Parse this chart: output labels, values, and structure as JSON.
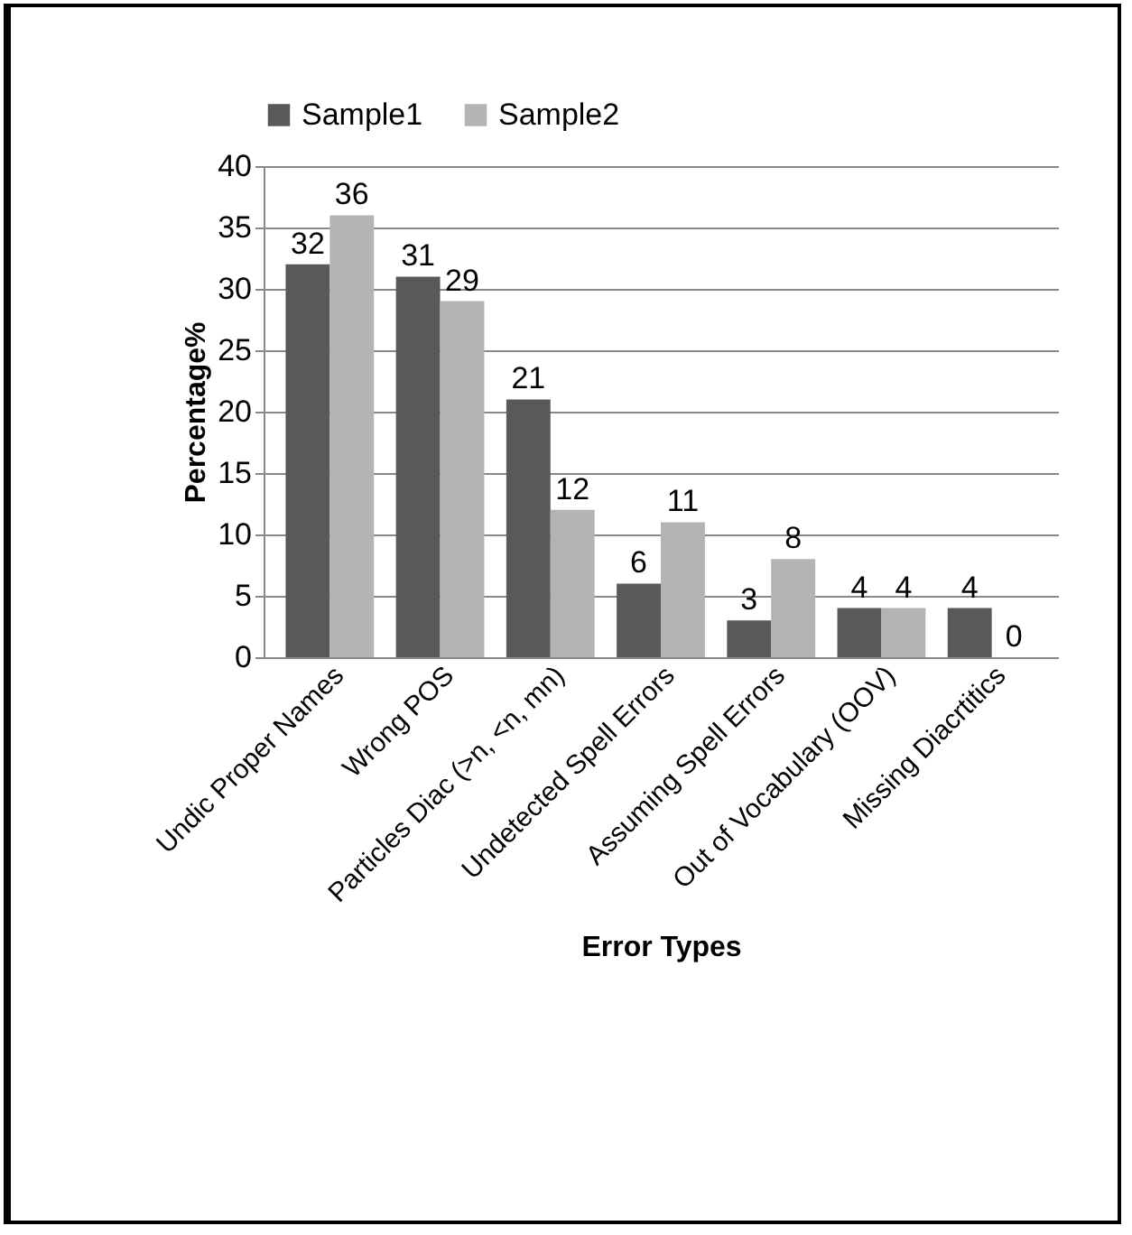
{
  "chart_data": {
    "type": "bar",
    "xlabel": "Error Types",
    "ylabel": "Percentage%",
    "categories": [
      "Undic Proper Names",
      "Wrong POS",
      "Particles Diac (>n, <n, mn)",
      "Undetected Spell Errors",
      "Assuming Spell Errors",
      "Out of Vocabulary (OOV)",
      "Missing Diacrtitics"
    ],
    "series": [
      {
        "name": "Sample1",
        "color": "#595959",
        "values": [
          32,
          31,
          21,
          6,
          3,
          4,
          4
        ]
      },
      {
        "name": "Sample2",
        "color": "#b3b3b3",
        "values": [
          36,
          29,
          12,
          11,
          8,
          4,
          0
        ]
      }
    ],
    "ylim": [
      0,
      40
    ],
    "yticks": [
      0,
      5,
      10,
      15,
      20,
      25,
      30,
      35,
      40
    ],
    "grid": "y",
    "legend": "top",
    "data_labels": true
  }
}
